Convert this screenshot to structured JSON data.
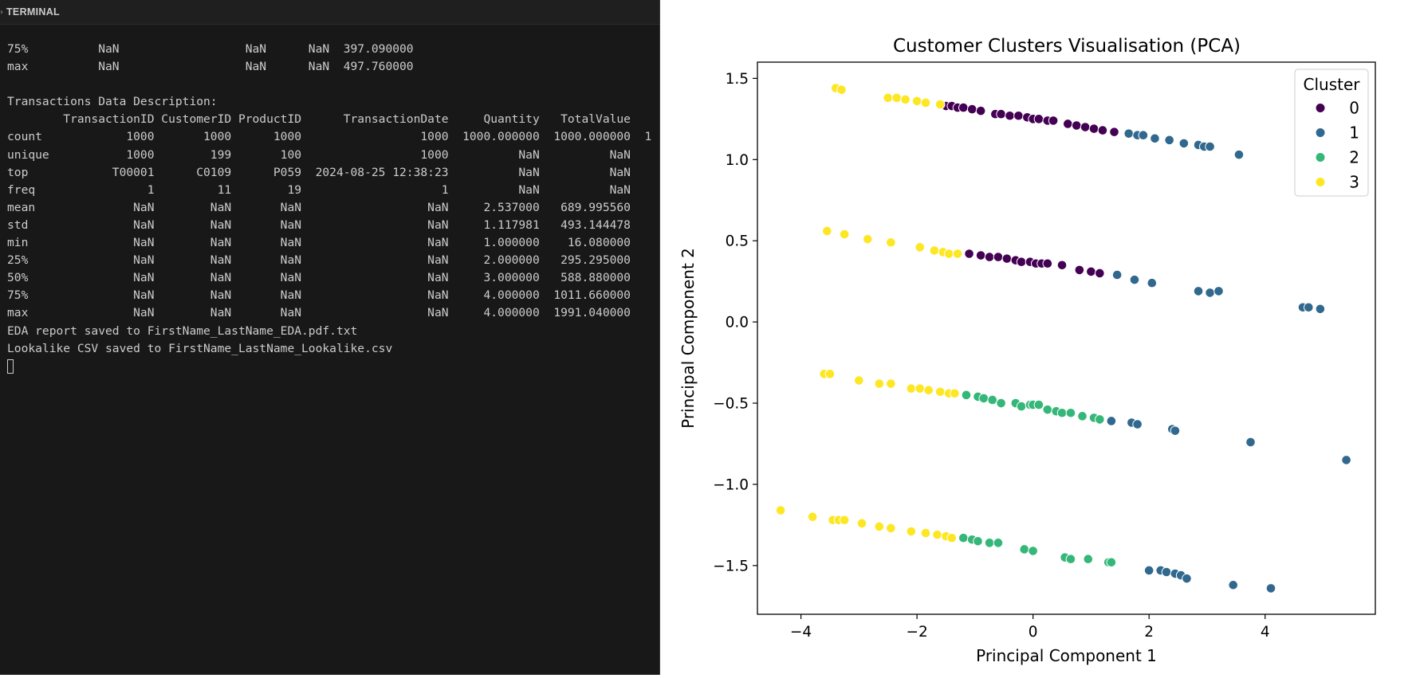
{
  "terminal": {
    "title": "TERMINAL",
    "lines": [
      "75%          NaN                  NaN      NaN  397.090000",
      "max          NaN                  NaN      NaN  497.760000",
      "",
      "Transactions Data Description:",
      "        TransactionID CustomerID ProductID      TransactionDate     Quantity   TotalValue",
      "count            1000       1000      1000                 1000  1000.000000  1000.000000  1",
      "unique           1000        199       100                 1000          NaN          NaN",
      "top            T00001      C0109      P059  2024-08-25 12:38:23          NaN          NaN",
      "freq                1         11        19                    1          NaN          NaN",
      "mean              NaN        NaN       NaN                  NaN     2.537000   689.995560",
      "std               NaN        NaN       NaN                  NaN     1.117981   493.144478",
      "min               NaN        NaN       NaN                  NaN     1.000000    16.080000",
      "25%               NaN        NaN       NaN                  NaN     2.000000   295.295000",
      "50%               NaN        NaN       NaN                  NaN     3.000000   588.880000",
      "75%               NaN        NaN       NaN                  NaN     4.000000  1011.660000",
      "max               NaN        NaN       NaN                  NaN     4.000000  1991.040000",
      "EDA report saved to FirstName_LastName_EDA.pdf.txt",
      "Lookalike CSV saved to FirstName_LastName_Lookalike.csv"
    ]
  },
  "chart_data": {
    "type": "scatter",
    "title": "Customer Clusters Visualisation (PCA)",
    "xlabel": "Principal Component 1",
    "ylabel": "Principal Component 2",
    "xlim": [
      -4.75,
      5.9
    ],
    "ylim": [
      -1.8,
      1.6
    ],
    "xticks": [
      -4,
      -2,
      0,
      2,
      4
    ],
    "xtick_labels": [
      "−4",
      "−2",
      "0",
      "2",
      "4"
    ],
    "yticks": [
      -1.5,
      -1.0,
      -0.5,
      0.0,
      0.5,
      1.0,
      1.5
    ],
    "ytick_labels": [
      "−1.5",
      "−1.0",
      "−0.5",
      "0.0",
      "0.5",
      "1.0",
      "1.5"
    ],
    "grid": false,
    "legend": {
      "title": "Cluster",
      "placement": "top-right"
    },
    "series": [
      {
        "name": "0",
        "color": "#440154",
        "points": [
          [
            -1.5,
            1.33
          ],
          [
            -1.4,
            1.33
          ],
          [
            -1.3,
            1.32
          ],
          [
            -1.2,
            1.32
          ],
          [
            -1.05,
            1.31
          ],
          [
            -0.9,
            1.3
          ],
          [
            -0.65,
            1.28
          ],
          [
            -0.55,
            1.28
          ],
          [
            -0.4,
            1.27
          ],
          [
            -0.25,
            1.27
          ],
          [
            -0.1,
            1.26
          ],
          [
            0.0,
            1.25
          ],
          [
            0.1,
            1.25
          ],
          [
            0.25,
            1.24
          ],
          [
            0.35,
            1.24
          ],
          [
            0.6,
            1.22
          ],
          [
            0.75,
            1.21
          ],
          [
            0.9,
            1.2
          ],
          [
            1.05,
            1.19
          ],
          [
            1.2,
            1.18
          ],
          [
            1.4,
            1.17
          ],
          [
            -1.1,
            0.42
          ],
          [
            -0.9,
            0.41
          ],
          [
            -0.75,
            0.4
          ],
          [
            -0.6,
            0.4
          ],
          [
            -0.45,
            0.39
          ],
          [
            -0.3,
            0.38
          ],
          [
            -0.2,
            0.37
          ],
          [
            -0.05,
            0.37
          ],
          [
            0.05,
            0.36
          ],
          [
            0.15,
            0.36
          ],
          [
            0.25,
            0.36
          ],
          [
            0.5,
            0.35
          ],
          [
            0.8,
            0.32
          ],
          [
            1.0,
            0.31
          ],
          [
            1.15,
            0.3
          ]
        ]
      },
      {
        "name": "1",
        "color": "#31688e",
        "points": [
          [
            1.65,
            1.16
          ],
          [
            1.8,
            1.15
          ],
          [
            1.9,
            1.15
          ],
          [
            2.1,
            1.13
          ],
          [
            2.35,
            1.12
          ],
          [
            2.6,
            1.1
          ],
          [
            2.85,
            1.09
          ],
          [
            2.95,
            1.08
          ],
          [
            3.05,
            1.08
          ],
          [
            3.55,
            1.03
          ],
          [
            1.45,
            0.29
          ],
          [
            1.75,
            0.26
          ],
          [
            2.05,
            0.24
          ],
          [
            2.85,
            0.19
          ],
          [
            3.05,
            0.18
          ],
          [
            3.2,
            0.19
          ],
          [
            4.65,
            0.09
          ],
          [
            4.75,
            0.09
          ],
          [
            4.95,
            0.08
          ],
          [
            1.35,
            -0.61
          ],
          [
            1.7,
            -0.62
          ],
          [
            1.8,
            -0.63
          ],
          [
            2.4,
            -0.66
          ],
          [
            2.45,
            -0.67
          ],
          [
            3.75,
            -0.74
          ],
          [
            5.4,
            -0.85
          ],
          [
            2.0,
            -1.53
          ],
          [
            2.2,
            -1.53
          ],
          [
            2.3,
            -1.54
          ],
          [
            2.45,
            -1.55
          ],
          [
            2.55,
            -1.56
          ],
          [
            2.65,
            -1.58
          ],
          [
            3.45,
            -1.62
          ],
          [
            4.1,
            -1.64
          ]
        ]
      },
      {
        "name": "2",
        "color": "#35b779",
        "points": [
          [
            -1.15,
            -0.45
          ],
          [
            -0.95,
            -0.46
          ],
          [
            -0.85,
            -0.47
          ],
          [
            -0.7,
            -0.48
          ],
          [
            -0.55,
            -0.5
          ],
          [
            -0.3,
            -0.5
          ],
          [
            -0.2,
            -0.52
          ],
          [
            -0.05,
            -0.51
          ],
          [
            0.0,
            -0.51
          ],
          [
            0.1,
            -0.51
          ],
          [
            0.25,
            -0.54
          ],
          [
            0.4,
            -0.55
          ],
          [
            0.5,
            -0.56
          ],
          [
            0.65,
            -0.56
          ],
          [
            0.85,
            -0.58
          ],
          [
            1.05,
            -0.59
          ],
          [
            1.15,
            -0.6
          ],
          [
            -1.2,
            -1.33
          ],
          [
            -1.05,
            -1.34
          ],
          [
            -0.95,
            -1.35
          ],
          [
            -0.75,
            -1.36
          ],
          [
            -0.6,
            -1.36
          ],
          [
            -0.15,
            -1.4
          ],
          [
            0.0,
            -1.41
          ],
          [
            0.55,
            -1.45
          ],
          [
            0.65,
            -1.46
          ],
          [
            0.95,
            -1.46
          ],
          [
            1.3,
            -1.48
          ],
          [
            1.35,
            -1.48
          ]
        ]
      },
      {
        "name": "3",
        "color": "#fde725",
        "points": [
          [
            -3.4,
            1.44
          ],
          [
            -3.3,
            1.43
          ],
          [
            -2.5,
            1.38
          ],
          [
            -2.35,
            1.38
          ],
          [
            -2.2,
            1.37
          ],
          [
            -2.0,
            1.36
          ],
          [
            -1.85,
            1.35
          ],
          [
            -1.6,
            1.34
          ],
          [
            -3.55,
            0.56
          ],
          [
            -3.25,
            0.54
          ],
          [
            -2.85,
            0.51
          ],
          [
            -2.45,
            0.49
          ],
          [
            -1.95,
            0.46
          ],
          [
            -1.7,
            0.44
          ],
          [
            -1.55,
            0.43
          ],
          [
            -1.45,
            0.42
          ],
          [
            -1.3,
            0.42
          ],
          [
            -3.6,
            -0.32
          ],
          [
            -3.5,
            -0.32
          ],
          [
            -3.0,
            -0.36
          ],
          [
            -2.65,
            -0.38
          ],
          [
            -2.45,
            -0.38
          ],
          [
            -2.1,
            -0.41
          ],
          [
            -1.95,
            -0.41
          ],
          [
            -1.8,
            -0.42
          ],
          [
            -1.6,
            -0.43
          ],
          [
            -1.45,
            -0.44
          ],
          [
            -1.35,
            -0.44
          ],
          [
            -4.35,
            -1.16
          ],
          [
            -3.8,
            -1.2
          ],
          [
            -3.45,
            -1.22
          ],
          [
            -3.35,
            -1.22
          ],
          [
            -3.25,
            -1.22
          ],
          [
            -2.95,
            -1.24
          ],
          [
            -2.65,
            -1.26
          ],
          [
            -2.45,
            -1.27
          ],
          [
            -2.1,
            -1.29
          ],
          [
            -1.85,
            -1.3
          ],
          [
            -1.65,
            -1.31
          ],
          [
            -1.5,
            -1.32
          ],
          [
            -1.4,
            -1.33
          ]
        ]
      }
    ]
  }
}
